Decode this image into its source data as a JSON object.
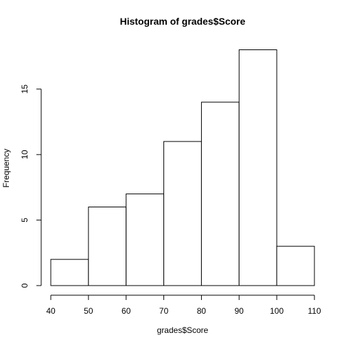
{
  "chart_data": {
    "type": "bar",
    "title": "Histogram of grades$Score",
    "xlabel": "grades$Score",
    "ylabel": "Frequency",
    "bins": [
      {
        "from": 40,
        "to": 50,
        "count": 2
      },
      {
        "from": 50,
        "to": 60,
        "count": 6
      },
      {
        "from": 60,
        "to": 70,
        "count": 7
      },
      {
        "from": 70,
        "to": 80,
        "count": 11
      },
      {
        "from": 80,
        "to": 90,
        "count": 14
      },
      {
        "from": 90,
        "to": 100,
        "count": 18
      },
      {
        "from": 100,
        "to": 110,
        "count": 3
      }
    ],
    "xlim": [
      40,
      110
    ],
    "ylim": [
      0,
      18
    ],
    "x_ticks": [
      40,
      50,
      60,
      70,
      80,
      90,
      100,
      110
    ],
    "y_ticks": [
      0,
      5,
      10,
      15
    ],
    "grid": false
  }
}
